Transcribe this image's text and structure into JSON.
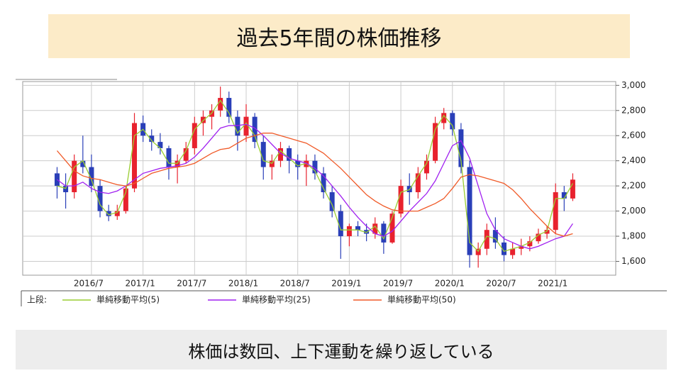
{
  "header": {
    "title": "過去5年間の株価推移"
  },
  "chart_data": {
    "type": "candlestick",
    "x": [
      "2016/3",
      "2016/4",
      "2016/5",
      "2016/6",
      "2016/7",
      "2016/8",
      "2016/9",
      "2016/10",
      "2016/11",
      "2016/12",
      "2017/1",
      "2017/2",
      "2017/3",
      "2017/4",
      "2017/5",
      "2017/6",
      "2017/7",
      "2017/8",
      "2017/9",
      "2017/10",
      "2017/11",
      "2017/12",
      "2018/1",
      "2018/2",
      "2018/3",
      "2018/4",
      "2018/5",
      "2018/6",
      "2018/7",
      "2018/8",
      "2018/9",
      "2018/10",
      "2018/11",
      "2018/12",
      "2019/1",
      "2019/2",
      "2019/3",
      "2019/4",
      "2019/5",
      "2019/6",
      "2019/7",
      "2019/8",
      "2019/9",
      "2019/10",
      "2019/11",
      "2019/12",
      "2020/1",
      "2020/2",
      "2020/3",
      "2020/4",
      "2020/5",
      "2020/6",
      "2020/7",
      "2020/8",
      "2020/9",
      "2020/10",
      "2020/11",
      "2020/12",
      "2021/1",
      "2021/2",
      "2021/3"
    ],
    "open": [
      2300,
      2200,
      2150,
      2400,
      2350,
      2200,
      2000,
      1960,
      2000,
      2180,
      2700,
      2600,
      2550,
      2500,
      2350,
      2400,
      2500,
      2700,
      2750,
      2800,
      2900,
      2750,
      2600,
      2750,
      2550,
      2350,
      2400,
      2500,
      2400,
      2350,
      2400,
      2300,
      2150,
      2000,
      1800,
      1880,
      1850,
      1820,
      1900,
      1750,
      1980,
      2200,
      2150,
      2300,
      2400,
      2700,
      2780,
      2650,
      2350,
      1650,
      1700,
      1850,
      1750,
      1650,
      1700,
      1720,
      1760,
      1820,
      1850,
      2150,
      2100
    ],
    "high": [
      2350,
      2300,
      2450,
      2600,
      2450,
      2250,
      2050,
      2050,
      2200,
      2780,
      2760,
      2650,
      2620,
      2520,
      2450,
      2550,
      2750,
      2800,
      2850,
      2990,
      2950,
      2800,
      2850,
      2780,
      2600,
      2450,
      2550,
      2520,
      2450,
      2450,
      2450,
      2350,
      2200,
      2050,
      1900,
      1920,
      1900,
      1950,
      1920,
      2000,
      2250,
      2300,
      2350,
      2450,
      2750,
      2820,
      2800,
      2700,
      2400,
      1750,
      1900,
      1950,
      1800,
      1750,
      1780,
      1800,
      1860,
      1880,
      2220,
      2200,
      2300
    ],
    "low": [
      2100,
      2020,
      2100,
      2300,
      2150,
      1950,
      1920,
      1930,
      1980,
      2150,
      2550,
      2480,
      2450,
      2250,
      2220,
      2380,
      2450,
      2600,
      2650,
      2750,
      2700,
      2480,
      2550,
      2500,
      2250,
      2250,
      2350,
      2300,
      2250,
      2200,
      2250,
      2100,
      1950,
      1620,
      1720,
      1800,
      1760,
      1780,
      1660,
      1740,
      1950,
      2050,
      2100,
      2250,
      2380,
      2650,
      2600,
      2300,
      1550,
      1550,
      1650,
      1700,
      1600,
      1620,
      1650,
      1680,
      1740,
      1780,
      1820,
      2000,
      2080
    ],
    "close": [
      2200,
      2150,
      2400,
      2350,
      2200,
      2000,
      1960,
      2000,
      2180,
      2700,
      2600,
      2550,
      2500,
      2350,
      2400,
      2500,
      2700,
      2750,
      2800,
      2900,
      2750,
      2600,
      2750,
      2550,
      2350,
      2400,
      2500,
      2400,
      2350,
      2400,
      2300,
      2150,
      2000,
      1800,
      1880,
      1850,
      1820,
      1900,
      1750,
      1980,
      2200,
      2150,
      2300,
      2400,
      2700,
      2780,
      2650,
      2350,
      1650,
      1700,
      1850,
      1750,
      1650,
      1700,
      1720,
      1760,
      1820,
      1850,
      2150,
      2100,
      2250
    ],
    "up_color": "#e8222e",
    "down_color": "#2a3fb8",
    "legend_prefix": "上段:",
    "series": [
      {
        "name": "単純移動平均(5)",
        "color": "#9acd32",
        "values": [
          2200,
          2180,
          2350,
          2400,
          2250,
          2050,
          1970,
          1990,
          2150,
          2600,
          2650,
          2560,
          2500,
          2380,
          2380,
          2480,
          2650,
          2720,
          2780,
          2880,
          2780,
          2620,
          2700,
          2600,
          2400,
          2380,
          2480,
          2420,
          2360,
          2380,
          2320,
          2180,
          2050,
          1850,
          1850,
          1850,
          1830,
          1880,
          1780,
          1950,
          2150,
          2170,
          2280,
          2380,
          2650,
          2760,
          2680,
          2400,
          1750,
          1680,
          1800,
          1780,
          1680,
          1700,
          1720,
          1750,
          1810,
          1840,
          2100,
          2100,
          2220
        ]
      },
      {
        "name": "単純移動平均(25)",
        "color": "#a020f0",
        "values": [
          2250,
          2200,
          2200,
          2230,
          2180,
          2150,
          2140,
          2160,
          2200,
          2250,
          2300,
          2320,
          2340,
          2350,
          2360,
          2380,
          2430,
          2500,
          2580,
          2660,
          2680,
          2680,
          2690,
          2660,
          2600,
          2530,
          2460,
          2420,
          2400,
          2380,
          2340,
          2280,
          2200,
          2120,
          2030,
          1950,
          1880,
          1820,
          1800,
          1840,
          1920,
          2000,
          2070,
          2140,
          2240,
          2380,
          2520,
          2560,
          2420,
          2200,
          1980,
          1850,
          1780,
          1750,
          1720,
          1700,
          1720,
          1750,
          1780,
          1800,
          1900
        ]
      },
      {
        "name": "単純移動平均(50)",
        "color": "#f05a28",
        "values": [
          2480,
          2400,
          2320,
          2280,
          2260,
          2250,
          2230,
          2210,
          2200,
          2220,
          2260,
          2300,
          2320,
          2340,
          2350,
          2360,
          2380,
          2420,
          2460,
          2490,
          2500,
          2540,
          2580,
          2600,
          2620,
          2620,
          2600,
          2580,
          2560,
          2540,
          2500,
          2460,
          2400,
          2340,
          2270,
          2200,
          2130,
          2080,
          2040,
          2010,
          2000,
          2000,
          2000,
          2030,
          2060,
          2100,
          2180,
          2270,
          2290,
          2280,
          2260,
          2240,
          2220,
          2170,
          2100,
          2020,
          1950,
          1880,
          1820,
          1800,
          1820
        ]
      }
    ],
    "xlim": [
      "2015/11",
      "2021/8"
    ],
    "xticks": [
      "2016/7",
      "2017/1",
      "2017/7",
      "2018/1",
      "2018/7",
      "2019/1",
      "2019/7",
      "2020/1",
      "2020/7",
      "2021/1"
    ],
    "ylim": [
      1490,
      3030
    ],
    "yticks": [
      {
        "value": 1600,
        "label": "1,600"
      },
      {
        "value": 1800,
        "label": "1,800"
      },
      {
        "value": 2000,
        "label": "2,000"
      },
      {
        "value": 2200,
        "label": "2,200"
      },
      {
        "value": 2400,
        "label": "2,400"
      },
      {
        "value": 2600,
        "label": "2,600"
      },
      {
        "value": 2800,
        "label": "2,800"
      },
      {
        "value": 3000,
        "label": "3,000"
      }
    ],
    "grid": true
  },
  "footer": {
    "text": "株価は数回、上下運動を繰り返している"
  }
}
